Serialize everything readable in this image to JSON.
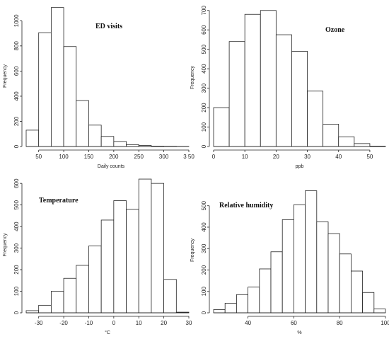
{
  "chart_data": [
    {
      "type": "bar",
      "title": "ED visits",
      "xlabel": "Daily counts",
      "ylabel": "Frequency",
      "bin_edges": [
        25,
        50,
        75,
        100,
        125,
        150,
        175,
        200,
        225,
        250,
        275,
        300,
        325,
        350
      ],
      "values": [
        130,
        905,
        1105,
        795,
        365,
        170,
        80,
        40,
        15,
        8,
        3,
        2,
        1
      ],
      "xticks": [
        50,
        100,
        150,
        200,
        250,
        300,
        "3 50"
      ],
      "yticks": [
        0,
        200,
        400,
        600,
        800,
        1000
      ],
      "xlim": [
        25,
        350
      ],
      "ylim": [
        0,
        1120
      ]
    },
    {
      "type": "bar",
      "title": "Ozone",
      "xlabel": "ppb",
      "ylabel": "Frequency",
      "bin_edges": [
        0,
        5,
        10,
        15,
        20,
        25,
        30,
        35,
        40,
        45,
        50,
        55
      ],
      "values": [
        200,
        540,
        680,
        700,
        575,
        490,
        285,
        115,
        50,
        15,
        2
      ],
      "xticks": [
        0,
        10,
        20,
        30,
        40,
        50
      ],
      "yticks": [
        0,
        100,
        200,
        300,
        400,
        500,
        600,
        700
      ],
      "xlim": [
        0,
        55
      ],
      "ylim": [
        0,
        710
      ]
    },
    {
      "type": "bar",
      "title": "Temperature",
      "xlabel": "°C",
      "ylabel": "Frequency",
      "bin_edges": [
        -35,
        -30,
        -25,
        -20,
        -15,
        -10,
        -5,
        0,
        5,
        10,
        15,
        20,
        25,
        30
      ],
      "values": [
        10,
        35,
        100,
        160,
        220,
        310,
        430,
        520,
        480,
        620,
        600,
        155,
        3
      ],
      "xticks": [
        -30,
        -20,
        -10,
        0,
        10,
        20,
        30
      ],
      "yticks": [
        0,
        100,
        200,
        300,
        400,
        500,
        600
      ],
      "xlim": [
        -35,
        30
      ],
      "ylim": [
        0,
        630
      ]
    },
    {
      "type": "bar",
      "title": "Relative humidity",
      "xlabel": "%",
      "ylabel": "Frequency",
      "bin_edges": [
        25,
        30,
        35,
        40,
        45,
        50,
        55,
        60,
        65,
        70,
        75,
        80,
        85,
        90,
        95,
        100
      ],
      "values": [
        15,
        45,
        85,
        120,
        205,
        285,
        435,
        505,
        570,
        425,
        370,
        275,
        195,
        95,
        18
      ],
      "xticks": [
        40,
        60,
        80,
        100
      ],
      "yticks": [
        0,
        100,
        200,
        300,
        400,
        500
      ],
      "xlim": [
        25,
        100
      ],
      "ylim": [
        0,
        585
      ]
    }
  ]
}
